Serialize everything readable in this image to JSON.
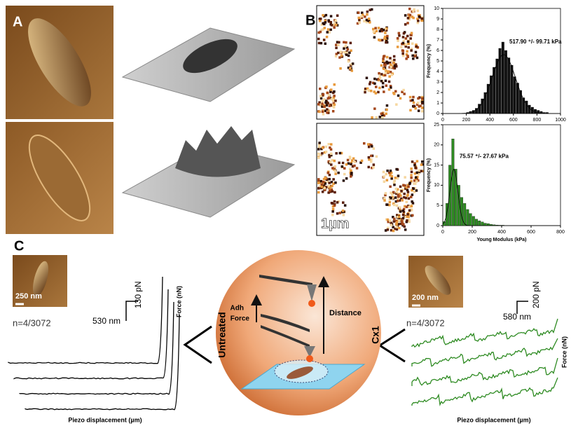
{
  "labels": {
    "a": "A",
    "b": "B",
    "c": "C"
  },
  "maps": {
    "scale_bar": "1µm"
  },
  "chart_data": [
    {
      "type": "histogram",
      "color": "#111111",
      "bins": [
        200,
        225,
        250,
        275,
        300,
        325,
        350,
        375,
        400,
        425,
        450,
        475,
        500,
        525,
        550,
        575,
        600,
        625,
        650,
        675,
        700,
        725,
        750,
        775,
        800,
        825,
        850,
        875,
        900
      ],
      "counts": [
        0.1,
        0.2,
        0.3,
        0.5,
        0.9,
        1.4,
        2.0,
        2.8,
        3.6,
        4.4,
        5.2,
        6.2,
        6.8,
        6.0,
        5.3,
        4.6,
        3.5,
        2.9,
        2.2,
        1.5,
        1.2,
        0.8,
        0.6,
        0.4,
        0.3,
        0.2,
        0.1,
        0.1
      ],
      "xlim": [
        0,
        1000
      ],
      "xticks": [
        0,
        200,
        400,
        600,
        800,
        1000
      ],
      "ylim": [
        0,
        10
      ],
      "yticks": [
        0,
        1,
        2,
        3,
        4,
        5,
        6,
        7,
        8,
        9,
        10
      ],
      "ylabel": "Frequency (%)",
      "annotation": "517.90 ⁺/- 99.71 kPa",
      "fit": {
        "mean": 517.9,
        "sd": 99.71,
        "peak": 5.6
      }
    },
    {
      "type": "histogram",
      "color": "#2e8b22",
      "bins": [
        0,
        20,
        40,
        60,
        80,
        100,
        120,
        140,
        160,
        180,
        200,
        220,
        240,
        260,
        280,
        300,
        320,
        340,
        360,
        380,
        400,
        420
      ],
      "counts": [
        1.0,
        5.5,
        15,
        21.5,
        14,
        10,
        7,
        5.5,
        4,
        3,
        2.3,
        1.6,
        1.2,
        0.9,
        0.6,
        0.5,
        0.3,
        0.2,
        0.15,
        0.1,
        0.1
      ],
      "xlim": [
        0,
        800
      ],
      "xticks": [
        0,
        200,
        400,
        600,
        800
      ],
      "ylim": [
        0,
        25
      ],
      "yticks": [
        0,
        5,
        10,
        15,
        20,
        25
      ],
      "ylabel": "Frequency (%)",
      "xlabel": "Young Modulus (kPa)",
      "annotation": "75.57 ⁺/- 27.67 kPa",
      "fit": {
        "mean": 75.57,
        "sd": 27.67,
        "peak": 14
      }
    }
  ],
  "panel_c": {
    "left": {
      "inset_scale": "250 nm",
      "n": "n=4/3072",
      "force_scale": "130 pN",
      "dist_scale": "530 nm",
      "force_axis": "Force (nN)",
      "x_axis": "Piezo displacement (µm)"
    },
    "right": {
      "inset_scale": "200 nm",
      "n": "n=4/3072",
      "force_scale": "200 pN",
      "dist_scale": "580 nm",
      "force_axis": "Force (nN)",
      "x_axis": "Piezo displacement (µm)"
    },
    "diagram": {
      "untreated": "Untreated",
      "treated": "Cx1",
      "adh": "Adh",
      "force": "Force",
      "distance": "Distance"
    }
  }
}
